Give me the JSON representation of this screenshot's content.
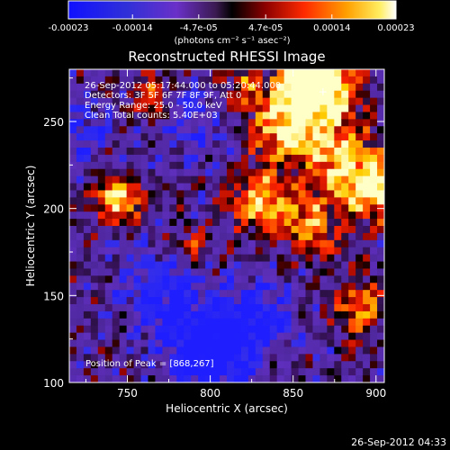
{
  "colorbar": {
    "ticks": [
      "-0.00023",
      "-0.00014",
      "-4.7e-05",
      "4.7e-05",
      "0.00014",
      "0.00023"
    ],
    "tick_values": [
      -0.00023,
      -0.00014,
      -4.7e-05,
      4.7e-05,
      0.00014,
      0.00023
    ],
    "range": [
      -0.00023,
      0.00023
    ],
    "label": "(photons cm⁻² s⁻¹ asec⁻²)"
  },
  "chart_data": {
    "type": "heatmap",
    "title": "Reconstructed RHESSI Image",
    "xlabel": "Heliocentric X (arcsec)",
    "ylabel": "Heliocentric Y (arcsec)",
    "xlim": [
      715,
      905
    ],
    "ylim": [
      100,
      280
    ],
    "xticks": [
      750,
      800,
      850,
      900
    ],
    "yticks": [
      100,
      150,
      200,
      250
    ],
    "xtick_labels": [
      "750",
      "800",
      "850",
      "900"
    ],
    "ytick_labels": [
      "100",
      "150",
      "200",
      "250"
    ],
    "colormap": "blue-purple-black-red-yellow-white",
    "peak": {
      "x": 868,
      "y": 267
    },
    "info_lines": [
      "26-Sep-2012 05:17:44.000 to 05:20:44.000",
      "Detectors: 3F 5F 6F 7F 8F 9F, Att 0",
      "Energy Range: 25.0 - 50.0 keV",
      "Clean    Total counts: 5.40E+03"
    ],
    "peak_label": "Position of Peak = [868,267]"
  },
  "footer": {
    "timestamp": "26-Sep-2012 04:33"
  }
}
